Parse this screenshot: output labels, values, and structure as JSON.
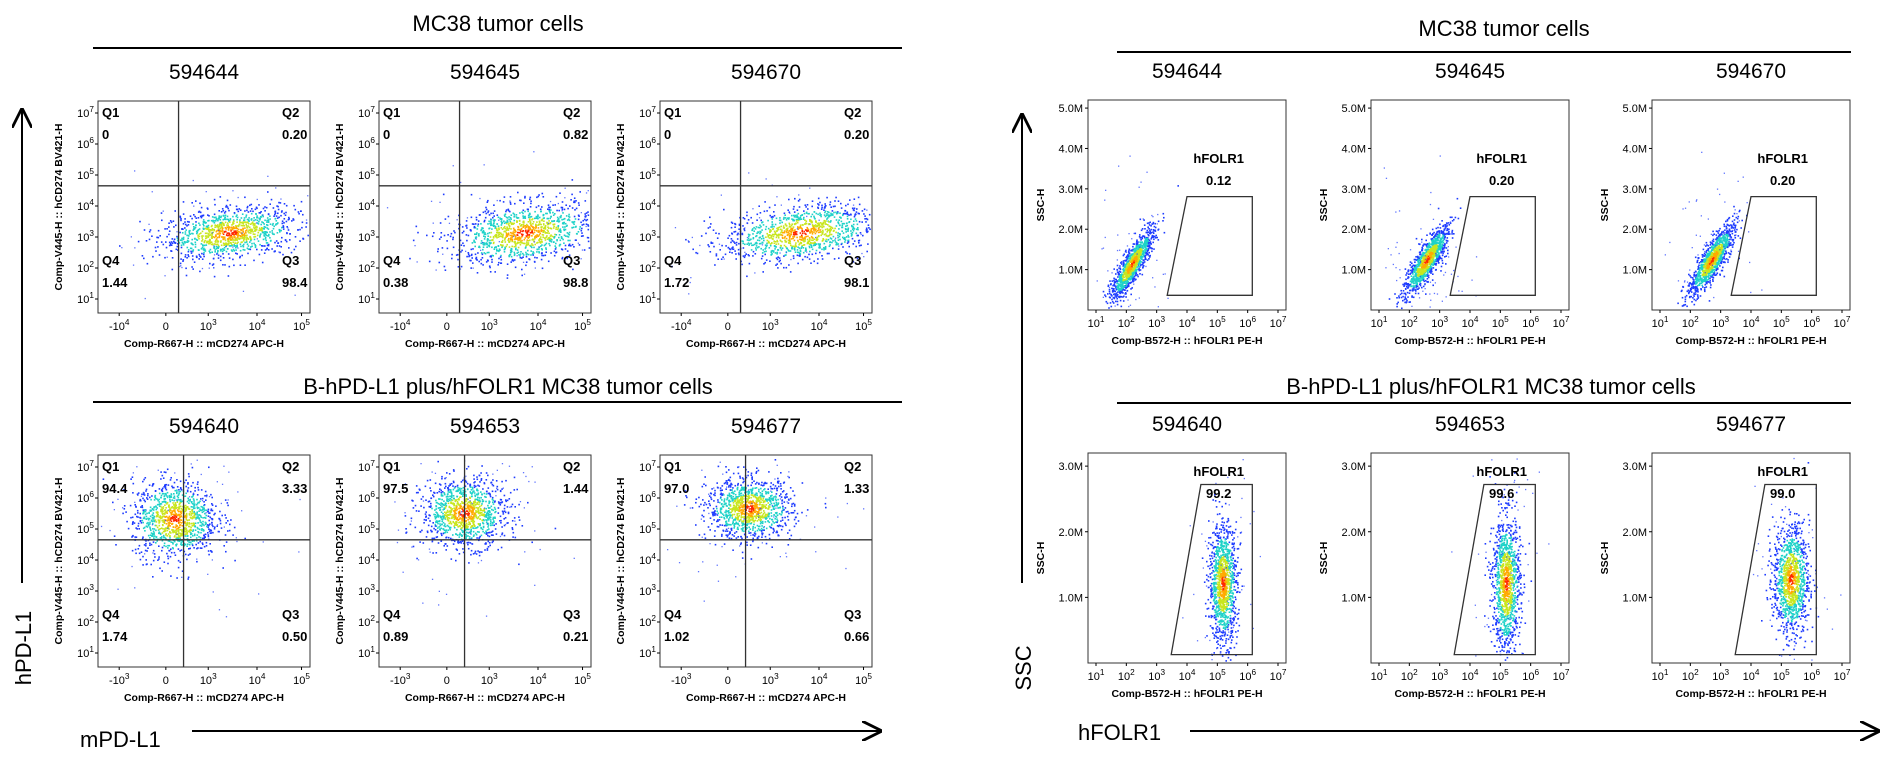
{
  "left_panel": {
    "top_heading": "MC38 tumor cells",
    "bottom_heading": "B-hPD-L1 plus/hFOLR1 MC38 tumor cells",
    "y_axis_label": "hPD-L1",
    "x_axis_label": "mPD-L1"
  },
  "right_panel": {
    "top_heading": "MC38 tumor cells",
    "bottom_heading": "B-hPD-L1 plus/hFOLR1 MC38 tumor cells",
    "y_axis_label": "SSC",
    "x_axis_label": "hFOLR1"
  },
  "colors": {
    "density_low": "#1e3cff",
    "density_mid": "#1ed2c8",
    "density_high_1": "#c8e61e",
    "density_high_2": "#ffaa00",
    "density_peak": "#ff2800",
    "frame": "#333333",
    "gate_line": "#333333"
  },
  "chart_data": [
    {
      "type": "scatter",
      "kind": "quadrant",
      "sample_id": "594644",
      "xlabel": "Comp-R667-H :: mCD274 APC-H",
      "ylabel": "Comp-V445-H :: hCD274 BV421-H",
      "x_ticks": [
        "-10",
        "0",
        "10",
        "10",
        "10"
      ],
      "x_tick_exps": [
        "4",
        "",
        "3",
        "4",
        "5"
      ],
      "y_ticks": [
        "10",
        "10",
        "10",
        "10",
        "10",
        "10",
        "10"
      ],
      "y_tick_exps": [
        "1",
        "2",
        "3",
        "4",
        "5",
        "6",
        "7"
      ],
      "quadrants": [
        {
          "name": "Q1",
          "value": "0"
        },
        {
          "name": "Q2",
          "value": "0.20"
        },
        {
          "name": "Q4",
          "value": "1.44"
        },
        {
          "name": "Q3",
          "value": "98.4"
        }
      ],
      "population": {
        "x_center": 0.62,
        "y_center": 0.38,
        "x_spread": 0.16,
        "y_spread": 0.06,
        "tilt": 0.25
      }
    },
    {
      "type": "scatter",
      "kind": "quadrant",
      "sample_id": "594645",
      "xlabel": "Comp-R667-H :: mCD274 APC-H",
      "ylabel": "Comp-V445-H :: hCD274 BV421-H",
      "x_ticks": [
        "-10",
        "0",
        "10",
        "10",
        "10"
      ],
      "x_tick_exps": [
        "4",
        "",
        "3",
        "4",
        "5"
      ],
      "y_ticks": [
        "10",
        "10",
        "10",
        "10",
        "10",
        "10",
        "10"
      ],
      "y_tick_exps": [
        "1",
        "2",
        "3",
        "4",
        "5",
        "6",
        "7"
      ],
      "quadrants": [
        {
          "name": "Q1",
          "value": "0"
        },
        {
          "name": "Q2",
          "value": "0.82"
        },
        {
          "name": "Q4",
          "value": "0.38"
        },
        {
          "name": "Q3",
          "value": "98.8"
        }
      ],
      "population": {
        "x_center": 0.68,
        "y_center": 0.38,
        "x_spread": 0.17,
        "y_spread": 0.07,
        "tilt": 0.25
      }
    },
    {
      "type": "scatter",
      "kind": "quadrant",
      "sample_id": "594670",
      "xlabel": "Comp-R667-H :: mCD274 APC-H",
      "ylabel": "Comp-V445-H :: hCD274 BV421-H",
      "x_ticks": [
        "-10",
        "0",
        "10",
        "10",
        "10"
      ],
      "x_tick_exps": [
        "4",
        "",
        "3",
        "4",
        "5"
      ],
      "y_ticks": [
        "10",
        "10",
        "10",
        "10",
        "10",
        "10",
        "10"
      ],
      "y_tick_exps": [
        "1",
        "2",
        "3",
        "4",
        "5",
        "6",
        "7"
      ],
      "quadrants": [
        {
          "name": "Q1",
          "value": "0"
        },
        {
          "name": "Q2",
          "value": "0.20"
        },
        {
          "name": "Q4",
          "value": "1.72"
        },
        {
          "name": "Q3",
          "value": "98.1"
        }
      ],
      "population": {
        "x_center": 0.66,
        "y_center": 0.38,
        "x_spread": 0.18,
        "y_spread": 0.065,
        "tilt": 0.25
      }
    },
    {
      "type": "scatter",
      "kind": "quadrant",
      "sample_id": "594640",
      "xlabel": "Comp-R667-H :: mCD274 APC-H",
      "ylabel": "Comp-V445-H :: hCD274 BV421-H",
      "x_ticks": [
        "-10",
        "0",
        "10",
        "10",
        "10"
      ],
      "x_tick_exps": [
        "3",
        "",
        "3",
        "4",
        "5"
      ],
      "y_ticks": [
        "10",
        "10",
        "10",
        "10",
        "10",
        "10",
        "10"
      ],
      "y_tick_exps": [
        "1",
        "2",
        "3",
        "4",
        "5",
        "6",
        "7"
      ],
      "quadrants": [
        {
          "name": "Q1",
          "value": "94.4"
        },
        {
          "name": "Q2",
          "value": "3.33"
        },
        {
          "name": "Q4",
          "value": "1.74"
        },
        {
          "name": "Q3",
          "value": "0.50"
        }
      ],
      "population": {
        "x_center": 0.36,
        "y_center": 0.7,
        "x_spread": 0.1,
        "y_spread": 0.09,
        "tilt": 0.0
      }
    },
    {
      "type": "scatter",
      "kind": "quadrant",
      "sample_id": "594653",
      "xlabel": "Comp-R667-H :: mCD274 APC-H",
      "ylabel": "Comp-V445-H :: hCD274 BV421-H",
      "x_ticks": [
        "-10",
        "0",
        "10",
        "10",
        "10"
      ],
      "x_tick_exps": [
        "3",
        "",
        "3",
        "4",
        "5"
      ],
      "y_ticks": [
        "10",
        "10",
        "10",
        "10",
        "10",
        "10",
        "10"
      ],
      "y_tick_exps": [
        "1",
        "2",
        "3",
        "4",
        "5",
        "6",
        "7"
      ],
      "quadrants": [
        {
          "name": "Q1",
          "value": "97.5"
        },
        {
          "name": "Q2",
          "value": "1.44"
        },
        {
          "name": "Q4",
          "value": "0.89"
        },
        {
          "name": "Q3",
          "value": "0.21"
        }
      ],
      "population": {
        "x_center": 0.4,
        "y_center": 0.73,
        "x_spread": 0.1,
        "y_spread": 0.08,
        "tilt": 0.0
      }
    },
    {
      "type": "scatter",
      "kind": "quadrant",
      "sample_id": "594677",
      "xlabel": "Comp-R667-H :: mCD274 APC-H",
      "ylabel": "Comp-V445-H :: hCD274 BV421-H",
      "x_ticks": [
        "-10",
        "0",
        "10",
        "10",
        "10"
      ],
      "x_tick_exps": [
        "3",
        "",
        "3",
        "4",
        "5"
      ],
      "y_ticks": [
        "10",
        "10",
        "10",
        "10",
        "10",
        "10",
        "10"
      ],
      "y_tick_exps": [
        "1",
        "2",
        "3",
        "4",
        "5",
        "6",
        "7"
      ],
      "quadrants": [
        {
          "name": "Q1",
          "value": "97.0"
        },
        {
          "name": "Q2",
          "value": "1.33"
        },
        {
          "name": "Q4",
          "value": "1.02"
        },
        {
          "name": "Q3",
          "value": "0.66"
        }
      ],
      "population": {
        "x_center": 0.42,
        "y_center": 0.75,
        "x_spread": 0.1,
        "y_spread": 0.07,
        "tilt": 0.0
      }
    },
    {
      "type": "scatter",
      "kind": "gate",
      "sample_id": "594644",
      "xlabel": "Comp-B572-H :: hFOLR1 PE-H",
      "ylabel": "SSC-H",
      "x_ticks": [
        "10",
        "10",
        "10",
        "10",
        "10",
        "10",
        "10"
      ],
      "x_tick_exps": [
        "1",
        "2",
        "3",
        "4",
        "5",
        "6",
        "7"
      ],
      "y_ticks": [
        "1.0M",
        "2.0M",
        "3.0M",
        "4.0M",
        "5.0M"
      ],
      "ylim": [
        0,
        5200000
      ],
      "gate": {
        "name": "hFOLR1",
        "value": "0.12"
      },
      "population": {
        "x_center": 0.22,
        "y_center": 0.22,
        "x_spread": 0.035,
        "y_spread": 0.08,
        "tilt": 1.2
      }
    },
    {
      "type": "scatter",
      "kind": "gate",
      "sample_id": "594645",
      "xlabel": "Comp-B572-H :: hFOLR1 PE-H",
      "ylabel": "SSC-H",
      "x_ticks": [
        "10",
        "10",
        "10",
        "10",
        "10",
        "10",
        "10"
      ],
      "x_tick_exps": [
        "1",
        "2",
        "3",
        "4",
        "5",
        "6",
        "7"
      ],
      "y_ticks": [
        "1.0M",
        "2.0M",
        "3.0M",
        "4.0M",
        "5.0M"
      ],
      "ylim": [
        0,
        5200000
      ],
      "gate": {
        "name": "hFOLR1",
        "value": "0.20"
      },
      "population": {
        "x_center": 0.28,
        "y_center": 0.24,
        "x_spread": 0.04,
        "y_spread": 0.08,
        "tilt": 1.2
      }
    },
    {
      "type": "scatter",
      "kind": "gate",
      "sample_id": "594670",
      "xlabel": "Comp-B572-H :: hFOLR1 PE-H",
      "ylabel": "SSC-H",
      "x_ticks": [
        "10",
        "10",
        "10",
        "10",
        "10",
        "10",
        "10"
      ],
      "x_tick_exps": [
        "1",
        "2",
        "3",
        "4",
        "5",
        "6",
        "7"
      ],
      "y_ticks": [
        "1.0M",
        "2.0M",
        "3.0M",
        "4.0M",
        "5.0M"
      ],
      "ylim": [
        0,
        5200000
      ],
      "gate": {
        "name": "hFOLR1",
        "value": "0.20"
      },
      "population": {
        "x_center": 0.3,
        "y_center": 0.24,
        "x_spread": 0.04,
        "y_spread": 0.08,
        "tilt": 1.2
      }
    },
    {
      "type": "scatter",
      "kind": "gate",
      "sample_id": "594640",
      "xlabel": "Comp-B572-H :: hFOLR1 PE-H",
      "ylabel": "SSC-H",
      "x_ticks": [
        "10",
        "10",
        "10",
        "10",
        "10",
        "10",
        "10"
      ],
      "x_tick_exps": [
        "1",
        "2",
        "3",
        "4",
        "5",
        "6",
        "7"
      ],
      "y_ticks": [
        "1.0M",
        "2.0M",
        "3.0M"
      ],
      "ylim": [
        0,
        3200000
      ],
      "gate": {
        "name": "hFOLR1",
        "value": "99.2"
      },
      "population": {
        "x_center": 0.68,
        "y_center": 0.38,
        "x_spread": 0.035,
        "y_spread": 0.14,
        "tilt": 0.0
      }
    },
    {
      "type": "scatter",
      "kind": "gate",
      "sample_id": "594653",
      "xlabel": "Comp-B572-H :: hFOLR1 PE-H",
      "ylabel": "SSC-H",
      "x_ticks": [
        "10",
        "10",
        "10",
        "10",
        "10",
        "10",
        "10"
      ],
      "x_tick_exps": [
        "1",
        "2",
        "3",
        "4",
        "5",
        "6",
        "7"
      ],
      "y_ticks": [
        "1.0M",
        "2.0M",
        "3.0M"
      ],
      "ylim": [
        0,
        3200000
      ],
      "gate": {
        "name": "hFOLR1",
        "value": "99.6"
      },
      "population": {
        "x_center": 0.68,
        "y_center": 0.38,
        "x_spread": 0.035,
        "y_spread": 0.16,
        "tilt": 0.0
      }
    },
    {
      "type": "scatter",
      "kind": "gate",
      "sample_id": "594677",
      "xlabel": "Comp-B572-H :: hFOLR1 PE-H",
      "ylabel": "SSC-H",
      "x_ticks": [
        "10",
        "10",
        "10",
        "10",
        "10",
        "10",
        "10"
      ],
      "x_tick_exps": [
        "1",
        "2",
        "3",
        "4",
        "5",
        "6",
        "7"
      ],
      "y_ticks": [
        "1.0M",
        "2.0M",
        "3.0M"
      ],
      "ylim": [
        0,
        3200000
      ],
      "gate": {
        "name": "hFOLR1",
        "value": "99.0"
      },
      "population": {
        "x_center": 0.7,
        "y_center": 0.4,
        "x_spread": 0.045,
        "y_spread": 0.13,
        "tilt": 0.0
      }
    }
  ]
}
